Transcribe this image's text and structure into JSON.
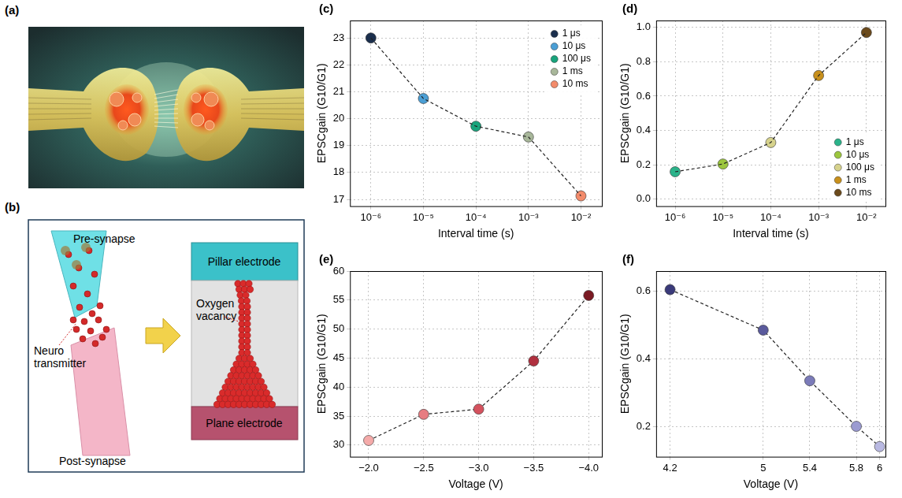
{
  "panels": {
    "a": {
      "label": "(a)"
    },
    "b": {
      "label": "(b)",
      "texts": {
        "pre_synapse": "Pre-synapse",
        "neuro_transmitter": "Neuro transmitter",
        "post_synapse": "Post-synapse",
        "pillar_electrode": "Pillar electrode",
        "oxygen_vacancy": "Oxygen vacancy",
        "plane_electrode": "Plane electrode"
      }
    }
  },
  "chart_data": [
    {
      "title": "(c)",
      "type": "line",
      "x_label": "Interval time (s)",
      "y_label": "EPSCgain (G10/G1)",
      "log": "x",
      "x": [
        1e-06,
        1e-05,
        0.0001,
        0.001,
        0.01
      ],
      "series": [
        {
          "name": "1 μs",
          "color": "#1b2f4d",
          "values": [
            23.0,
            null,
            null,
            null,
            null
          ]
        },
        {
          "name": "10 μs",
          "color": "#4b9fd5",
          "values": [
            null,
            20.75,
            null,
            null,
            null
          ]
        },
        {
          "name": "100 μs",
          "color": "#18a47c",
          "values": [
            null,
            null,
            19.72,
            null,
            null
          ]
        },
        {
          "name": "1 ms",
          "color": "#a8b79a",
          "values": [
            null,
            null,
            null,
            19.32,
            null
          ]
        },
        {
          "name": "10 ms",
          "color": "#f38b6b",
          "values": [
            null,
            null,
            null,
            null,
            17.13
          ]
        }
      ],
      "xlim": [
        4e-07,
        0.025
      ],
      "xticks": [
        {
          "value": 1e-06,
          "label": "10⁻⁶"
        },
        {
          "value": 1e-05,
          "label": "10⁻⁵"
        },
        {
          "value": 0.0001,
          "label": "10⁻⁴"
        },
        {
          "value": 0.001,
          "label": "10⁻³"
        },
        {
          "value": 0.01,
          "label": "10⁻²"
        }
      ],
      "ylim": [
        16.75,
        23.65
      ],
      "yticks": [
        17,
        18,
        19,
        20,
        21,
        22,
        23
      ],
      "grid": true,
      "legend": "upper right",
      "marker": "circle",
      "line_style": "dashed"
    },
    {
      "title": "(d)",
      "type": "line",
      "x_label": "Interval time (s)",
      "y_label": "EPSCgain (G10/G1)",
      "log": "x",
      "x": [
        1e-06,
        1e-05,
        0.0001,
        0.001,
        0.01
      ],
      "series": [
        {
          "name": "1 μs",
          "color": "#2bb38a",
          "values": [
            0.16,
            null,
            null,
            null,
            null
          ]
        },
        {
          "name": "10 μs",
          "color": "#9cc63e",
          "values": [
            null,
            0.205,
            null,
            null,
            null
          ]
        },
        {
          "name": "100 μs",
          "color": "#d6d28c",
          "values": [
            null,
            null,
            0.33,
            null,
            null
          ]
        },
        {
          "name": "1 ms",
          "color": "#c8901c",
          "values": [
            null,
            null,
            null,
            0.72,
            null
          ]
        },
        {
          "name": "10 ms",
          "color": "#6b4a1b",
          "values": [
            null,
            null,
            null,
            null,
            0.97
          ]
        }
      ],
      "xlim": [
        4e-07,
        0.025
      ],
      "xticks": [
        {
          "value": 1e-06,
          "label": "10⁻⁶"
        },
        {
          "value": 1e-05,
          "label": "10⁻⁵"
        },
        {
          "value": 0.0001,
          "label": "10⁻⁴"
        },
        {
          "value": 0.001,
          "label": "10⁻³"
        },
        {
          "value": 0.01,
          "label": "10⁻²"
        }
      ],
      "ylim": [
        -0.04,
        1.04
      ],
      "yticks": [
        {
          "value": 0,
          "label": "0.0"
        },
        0.2,
        0.4,
        0.6,
        0.8,
        {
          "value": 1,
          "label": "1.0"
        }
      ],
      "grid": true,
      "legend": "lower right",
      "marker": "circle",
      "line_style": "dashed"
    },
    {
      "title": "(e)",
      "type": "line",
      "x_label": "Voltage (V)",
      "y_label": "EPSCgain (G10/G1)",
      "x": [
        -2.0,
        -2.5,
        -3.0,
        -3.5,
        -4.0
      ],
      "values": [
        30.8,
        35.3,
        36.2,
        44.5,
        55.8
      ],
      "colors": [
        "#f4aaa9",
        "#e77c81",
        "#d4525e",
        "#b0303f",
        "#7a1a23"
      ],
      "xlim": [
        -1.83,
        -4.12
      ],
      "xticks": [
        {
          "value": -2.0,
          "label": "−2.0"
        },
        {
          "value": -2.5,
          "label": "−2.5"
        },
        {
          "value": -3.0,
          "label": "−3.0"
        },
        {
          "value": -3.5,
          "label": "−3.5"
        },
        {
          "value": -4.0,
          "label": "−4.0"
        }
      ],
      "ylim": [
        28,
        60
      ],
      "yticks": [
        30,
        35,
        40,
        45,
        50,
        55,
        60
      ],
      "grid": true,
      "marker": "circle",
      "line_style": "dashed"
    },
    {
      "title": "(f)",
      "type": "line",
      "x_label": "Voltage (V)",
      "y_label": "EPSCgain (G10/G1)",
      "x": [
        4.2,
        5,
        5.4,
        5.8,
        6
      ],
      "values": [
        0.605,
        0.485,
        0.335,
        0.2,
        0.14
      ],
      "colors": [
        "#3a3a7a",
        "#5a5a9c",
        "#7b7bb9",
        "#9b9bd1",
        "#b9b9e2"
      ],
      "xlim": [
        4.08,
        6.05
      ],
      "xticks": [
        4.2,
        5,
        5.4,
        5.8,
        6
      ],
      "ylim": [
        0.11,
        0.66
      ],
      "yticks": [
        0.2,
        0.4,
        0.6
      ],
      "grid": true,
      "marker": "circle",
      "line_style": "dashed"
    }
  ]
}
